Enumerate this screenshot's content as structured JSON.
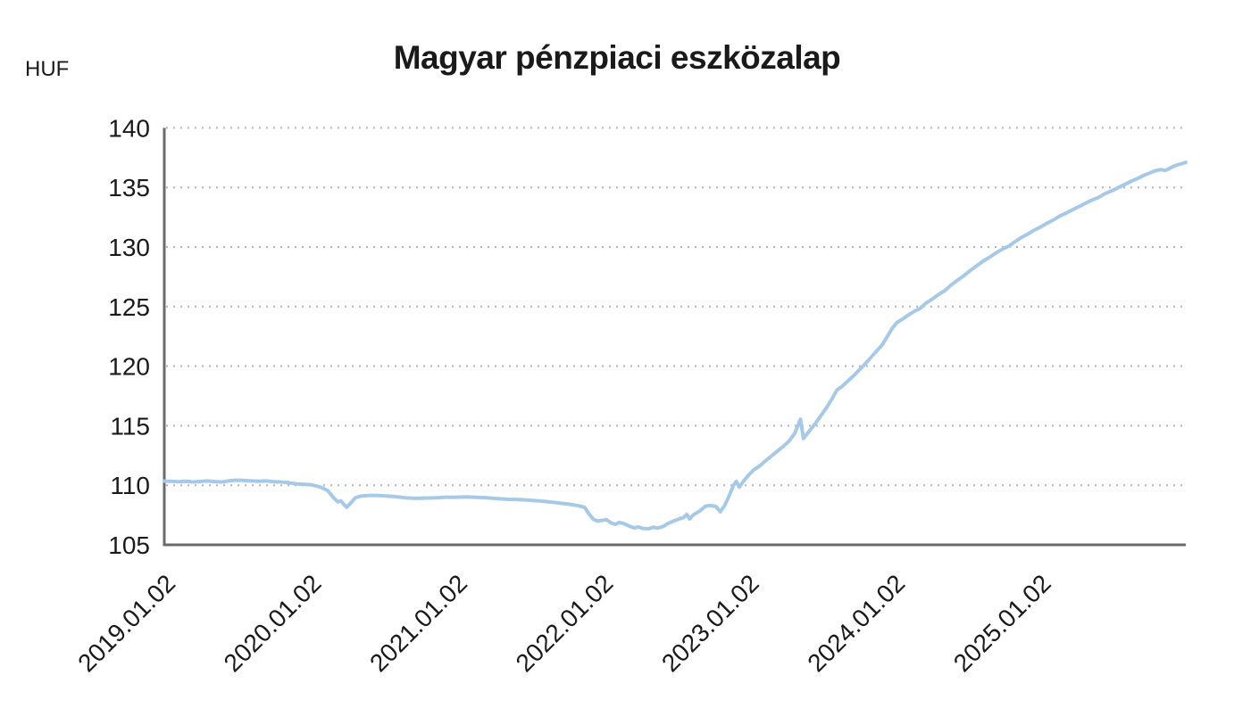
{
  "header": {
    "title": "Magyar pénzpiaci eszközalap",
    "unit_label": "HUF"
  },
  "chart_data": {
    "type": "line",
    "title": "Magyar pénzpiaci eszközalap",
    "unit": "HUF",
    "xlabel": "",
    "ylabel": "HUF",
    "xlim": [
      2019.0,
      2026.0
    ],
    "ylim": [
      105,
      140
    ],
    "grid": "horizontal-dotted",
    "legend": "none",
    "y_ticks": [
      105,
      110,
      115,
      120,
      125,
      130,
      135,
      140
    ],
    "x_ticks": [
      {
        "x": 2019.0,
        "label": "2019.01.02"
      },
      {
        "x": 2020.0,
        "label": "2020.01.02"
      },
      {
        "x": 2021.0,
        "label": "2021.01.02"
      },
      {
        "x": 2022.0,
        "label": "2022.01.02"
      },
      {
        "x": 2023.0,
        "label": "2023.01.02"
      },
      {
        "x": 2024.0,
        "label": "2024.01.02"
      },
      {
        "x": 2025.0,
        "label": "2025.01.02"
      }
    ],
    "colors": {
      "line": "#a6c9e8",
      "axis": "#6b6b6b",
      "gridline": "#b3b3b3",
      "text": "#1a1a1a",
      "background": "#ffffff"
    },
    "series": [
      {
        "name": "Magyar pénzpiaci eszközalap (HUF)",
        "points": [
          [
            2019.0,
            110.35
          ],
          [
            2019.05,
            110.32
          ],
          [
            2019.1,
            110.3
          ],
          [
            2019.15,
            110.33
          ],
          [
            2019.2,
            110.28
          ],
          [
            2019.25,
            110.32
          ],
          [
            2019.3,
            110.36
          ],
          [
            2019.35,
            110.3
          ],
          [
            2019.4,
            110.28
          ],
          [
            2019.45,
            110.38
          ],
          [
            2019.5,
            110.43
          ],
          [
            2019.55,
            110.4
          ],
          [
            2019.6,
            110.36
          ],
          [
            2019.65,
            110.33
          ],
          [
            2019.7,
            110.36
          ],
          [
            2019.75,
            110.3
          ],
          [
            2019.8,
            110.28
          ],
          [
            2019.85,
            110.22
          ],
          [
            2019.9,
            110.12
          ],
          [
            2019.95,
            110.08
          ],
          [
            2020.0,
            110.05
          ],
          [
            2020.04,
            109.95
          ],
          [
            2020.08,
            109.8
          ],
          [
            2020.12,
            109.55
          ],
          [
            2020.16,
            108.95
          ],
          [
            2020.19,
            108.6
          ],
          [
            2020.21,
            108.7
          ],
          [
            2020.23,
            108.4
          ],
          [
            2020.25,
            108.15
          ],
          [
            2020.28,
            108.55
          ],
          [
            2020.31,
            108.95
          ],
          [
            2020.35,
            109.1
          ],
          [
            2020.4,
            109.15
          ],
          [
            2020.46,
            109.15
          ],
          [
            2020.52,
            109.1
          ],
          [
            2020.58,
            109.05
          ],
          [
            2020.65,
            108.95
          ],
          [
            2020.72,
            108.9
          ],
          [
            2020.79,
            108.92
          ],
          [
            2020.86,
            108.95
          ],
          [
            2020.93,
            109.0
          ],
          [
            2021.0,
            109.0
          ],
          [
            2021.07,
            109.03
          ],
          [
            2021.14,
            108.98
          ],
          [
            2021.21,
            108.95
          ],
          [
            2021.29,
            108.88
          ],
          [
            2021.36,
            108.82
          ],
          [
            2021.43,
            108.8
          ],
          [
            2021.5,
            108.75
          ],
          [
            2021.57,
            108.68
          ],
          [
            2021.64,
            108.6
          ],
          [
            2021.71,
            108.5
          ],
          [
            2021.78,
            108.4
          ],
          [
            2021.84,
            108.28
          ],
          [
            2021.88,
            108.15
          ],
          [
            2021.91,
            107.6
          ],
          [
            2021.94,
            107.15
          ],
          [
            2021.97,
            106.98
          ],
          [
            2022.0,
            107.05
          ],
          [
            2022.03,
            107.12
          ],
          [
            2022.06,
            106.85
          ],
          [
            2022.09,
            106.72
          ],
          [
            2022.12,
            106.88
          ],
          [
            2022.15,
            106.78
          ],
          [
            2022.18,
            106.6
          ],
          [
            2022.22,
            106.42
          ],
          [
            2022.25,
            106.5
          ],
          [
            2022.28,
            106.38
          ],
          [
            2022.32,
            106.35
          ],
          [
            2022.35,
            106.48
          ],
          [
            2022.38,
            106.4
          ],
          [
            2022.42,
            106.55
          ],
          [
            2022.45,
            106.78
          ],
          [
            2022.49,
            107.0
          ],
          [
            2022.53,
            107.18
          ],
          [
            2022.56,
            107.3
          ],
          [
            2022.58,
            107.55
          ],
          [
            2022.6,
            107.18
          ],
          [
            2022.63,
            107.55
          ],
          [
            2022.67,
            107.85
          ],
          [
            2022.71,
            108.25
          ],
          [
            2022.74,
            108.3
          ],
          [
            2022.78,
            108.22
          ],
          [
            2022.81,
            107.78
          ],
          [
            2022.84,
            108.3
          ],
          [
            2022.87,
            109.1
          ],
          [
            2022.9,
            110.0
          ],
          [
            2022.92,
            110.32
          ],
          [
            2022.94,
            109.85
          ],
          [
            2022.97,
            110.35
          ],
          [
            2023.0,
            110.8
          ],
          [
            2023.04,
            111.3
          ],
          [
            2023.08,
            111.62
          ],
          [
            2023.12,
            112.05
          ],
          [
            2023.16,
            112.45
          ],
          [
            2023.2,
            112.85
          ],
          [
            2023.24,
            113.25
          ],
          [
            2023.28,
            113.7
          ],
          [
            2023.32,
            114.35
          ],
          [
            2023.35,
            115.25
          ],
          [
            2023.36,
            115.55
          ],
          [
            2023.38,
            113.92
          ],
          [
            2023.42,
            114.55
          ],
          [
            2023.46,
            115.15
          ],
          [
            2023.5,
            115.85
          ],
          [
            2023.54,
            116.55
          ],
          [
            2023.58,
            117.35
          ],
          [
            2023.61,
            118.0
          ],
          [
            2023.64,
            118.25
          ],
          [
            2023.68,
            118.7
          ],
          [
            2023.72,
            119.15
          ],
          [
            2023.76,
            119.65
          ],
          [
            2023.8,
            120.15
          ],
          [
            2023.84,
            120.7
          ],
          [
            2023.88,
            121.25
          ],
          [
            2023.92,
            121.8
          ],
          [
            2023.96,
            122.6
          ],
          [
            2023.99,
            123.2
          ],
          [
            2024.02,
            123.65
          ],
          [
            2024.06,
            123.95
          ],
          [
            2024.1,
            124.3
          ],
          [
            2024.14,
            124.6
          ],
          [
            2024.18,
            124.85
          ],
          [
            2024.22,
            125.3
          ],
          [
            2024.26,
            125.6
          ],
          [
            2024.31,
            126.05
          ],
          [
            2024.35,
            126.35
          ],
          [
            2024.39,
            126.8
          ],
          [
            2024.44,
            127.25
          ],
          [
            2024.48,
            127.6
          ],
          [
            2024.52,
            128.0
          ],
          [
            2024.57,
            128.45
          ],
          [
            2024.61,
            128.8
          ],
          [
            2024.65,
            129.1
          ],
          [
            2024.7,
            129.5
          ],
          [
            2024.74,
            129.8
          ],
          [
            2024.79,
            130.1
          ],
          [
            2024.83,
            130.45
          ],
          [
            2024.88,
            130.85
          ],
          [
            2024.92,
            131.1
          ],
          [
            2024.96,
            131.4
          ],
          [
            2025.0,
            131.65
          ],
          [
            2025.05,
            132.0
          ],
          [
            2025.09,
            132.25
          ],
          [
            2025.13,
            132.55
          ],
          [
            2025.18,
            132.85
          ],
          [
            2025.22,
            133.1
          ],
          [
            2025.27,
            133.4
          ],
          [
            2025.31,
            133.65
          ],
          [
            2025.36,
            133.95
          ],
          [
            2025.4,
            134.15
          ],
          [
            2025.45,
            134.5
          ],
          [
            2025.49,
            134.7
          ],
          [
            2025.54,
            135.0
          ],
          [
            2025.58,
            135.25
          ],
          [
            2025.63,
            135.55
          ],
          [
            2025.67,
            135.75
          ],
          [
            2025.71,
            136.0
          ],
          [
            2025.75,
            136.2
          ],
          [
            2025.79,
            136.4
          ],
          [
            2025.83,
            136.5
          ],
          [
            2025.86,
            136.42
          ],
          [
            2025.89,
            136.6
          ],
          [
            2025.92,
            136.8
          ],
          [
            2025.96,
            136.95
          ],
          [
            2026.0,
            137.1
          ]
        ]
      }
    ]
  }
}
